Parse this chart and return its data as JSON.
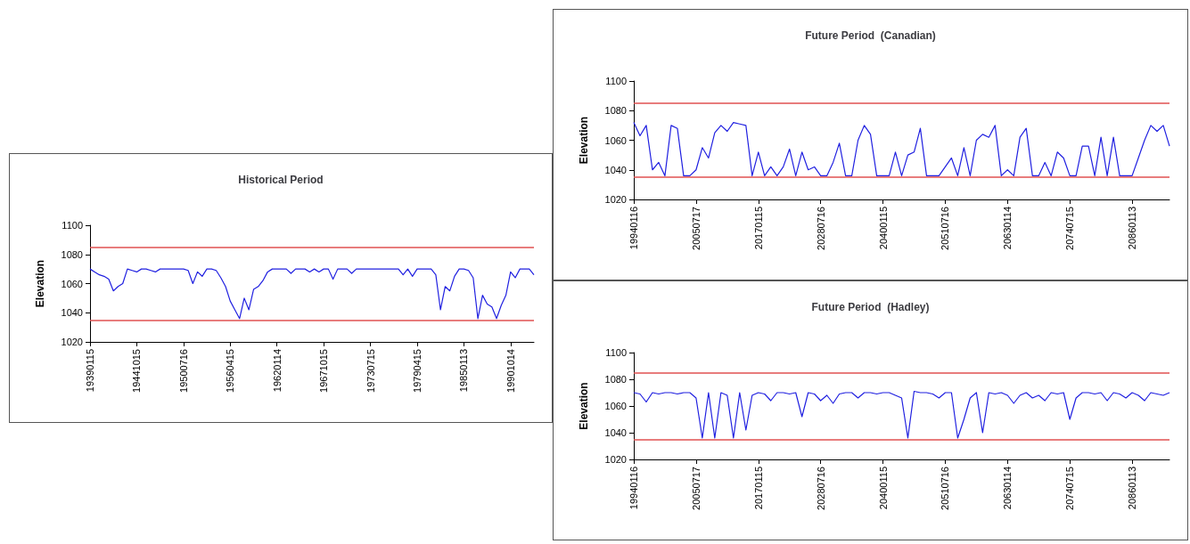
{
  "chart_data": [
    {
      "type": "line",
      "title": "Historical Period",
      "ylabel": "Elevation",
      "grid": false,
      "categories": [
        "19390115",
        null,
        null,
        null,
        null,
        null,
        null,
        null,
        null,
        null,
        "19441015",
        null,
        null,
        null,
        null,
        null,
        null,
        null,
        null,
        null,
        "19500716",
        null,
        null,
        null,
        null,
        null,
        null,
        null,
        null,
        null,
        "19560415",
        null,
        null,
        null,
        null,
        null,
        null,
        null,
        null,
        null,
        "19620114",
        null,
        null,
        null,
        null,
        null,
        null,
        null,
        null,
        null,
        "19671015",
        null,
        null,
        null,
        null,
        null,
        null,
        null,
        null,
        null,
        "19730715",
        null,
        null,
        null,
        null,
        null,
        null,
        null,
        null,
        null,
        "19790415",
        null,
        null,
        null,
        null,
        null,
        null,
        null,
        null,
        null,
        "19850113",
        null,
        null,
        null,
        null,
        null,
        null,
        null,
        null,
        null,
        "19901014",
        null,
        null,
        null,
        null,
        null
      ],
      "series": [
        {
          "color": "#2020e0",
          "values": [
            1070,
            1068,
            1066,
            1065,
            1063,
            1055,
            1058,
            1060,
            1070,
            1069,
            1068,
            1070,
            1070,
            1069,
            1068,
            1070,
            1070,
            1070,
            1070,
            1070,
            1070,
            1069,
            1060,
            1068,
            1065,
            1070,
            1070,
            1069,
            1064,
            1058,
            1048,
            1042,
            1036,
            1050,
            1042,
            1056,
            1058,
            1062,
            1068,
            1070,
            1070,
            1070,
            1070,
            1067,
            1070,
            1070,
            1070,
            1068,
            1070,
            1068,
            1070,
            1070,
            1063,
            1070,
            1070,
            1070,
            1067,
            1070,
            1070,
            1070,
            1070,
            1070,
            1070,
            1070,
            1070,
            1070,
            1070,
            1066,
            1070,
            1065,
            1070,
            1070,
            1070,
            1070,
            1066,
            1042,
            1058,
            1055,
            1065,
            1070,
            1070,
            1069,
            1064,
            1036,
            1052,
            1046,
            1044,
            1036,
            1045,
            1052,
            1068,
            1064,
            1070,
            1070,
            1070,
            1066
          ]
        }
      ],
      "ylim": [
        1020,
        1100
      ],
      "yticks": [
        1020,
        1040,
        1060,
        1080,
        1100
      ],
      "ref_lines": [
        {
          "axis": "y",
          "value": 1085,
          "color": "#e05050"
        },
        {
          "axis": "y",
          "value": 1035,
          "color": "#e05050"
        }
      ]
    },
    {
      "type": "line",
      "title": "Future Period  (Canadian)",
      "ylabel": "Elevation",
      "grid": false,
      "categories": [
        "19940116",
        null,
        null,
        null,
        null,
        null,
        null,
        null,
        null,
        null,
        "20050717",
        null,
        null,
        null,
        null,
        null,
        null,
        null,
        null,
        null,
        "20170115",
        null,
        null,
        null,
        null,
        null,
        null,
        null,
        null,
        null,
        "20280716",
        null,
        null,
        null,
        null,
        null,
        null,
        null,
        null,
        null,
        "20400115",
        null,
        null,
        null,
        null,
        null,
        null,
        null,
        null,
        null,
        "20510716",
        null,
        null,
        null,
        null,
        null,
        null,
        null,
        null,
        null,
        "20630114",
        null,
        null,
        null,
        null,
        null,
        null,
        null,
        null,
        null,
        "20740715",
        null,
        null,
        null,
        null,
        null,
        null,
        null,
        null,
        null,
        "20860113",
        null,
        null,
        null,
        null,
        null,
        null
      ],
      "series": [
        {
          "color": "#2020e0",
          "values": [
            1072,
            1063,
            1070,
            1040,
            1045,
            1036,
            1070,
            1068,
            1036,
            1036,
            1040,
            1055,
            1048,
            1065,
            1070,
            1066,
            1072,
            1071,
            1070,
            1036,
            1052,
            1036,
            1042,
            1036,
            1042,
            1054,
            1036,
            1052,
            1040,
            1042,
            1036,
            1036,
            1045,
            1058,
            1036,
            1036,
            1060,
            1070,
            1064,
            1036,
            1036,
            1036,
            1052,
            1036,
            1050,
            1052,
            1068,
            1036,
            1036,
            1036,
            1042,
            1048,
            1036,
            1055,
            1036,
            1060,
            1064,
            1062,
            1070,
            1036,
            1040,
            1036,
            1062,
            1068,
            1036,
            1036,
            1045,
            1036,
            1052,
            1048,
            1036,
            1036,
            1056,
            1056,
            1036,
            1062,
            1036,
            1062,
            1036,
            1036,
            1036,
            1048,
            1060,
            1070,
            1066,
            1070,
            1056
          ]
        }
      ],
      "ylim": [
        1020,
        1100
      ],
      "yticks": [
        1020,
        1040,
        1060,
        1080,
        1100
      ],
      "ref_lines": [
        {
          "axis": "y",
          "value": 1085,
          "color": "#e05050"
        },
        {
          "axis": "y",
          "value": 1035,
          "color": "#e05050"
        }
      ]
    },
    {
      "type": "line",
      "title": "Future Period  (Hadley)",
      "ylabel": "Elevation",
      "grid": false,
      "categories": [
        "19940116",
        null,
        null,
        null,
        null,
        null,
        null,
        null,
        null,
        null,
        "20050717",
        null,
        null,
        null,
        null,
        null,
        null,
        null,
        null,
        null,
        "20170115",
        null,
        null,
        null,
        null,
        null,
        null,
        null,
        null,
        null,
        "20280716",
        null,
        null,
        null,
        null,
        null,
        null,
        null,
        null,
        null,
        "20400115",
        null,
        null,
        null,
        null,
        null,
        null,
        null,
        null,
        null,
        "20510716",
        null,
        null,
        null,
        null,
        null,
        null,
        null,
        null,
        null,
        "20630114",
        null,
        null,
        null,
        null,
        null,
        null,
        null,
        null,
        null,
        "20740715",
        null,
        null,
        null,
        null,
        null,
        null,
        null,
        null,
        null,
        "20860113",
        null,
        null,
        null,
        null,
        null,
        null
      ],
      "series": [
        {
          "color": "#2020e0",
          "values": [
            1070,
            1069,
            1063,
            1070,
            1069,
            1070,
            1070,
            1069,
            1070,
            1070,
            1066,
            1036,
            1070,
            1036,
            1070,
            1068,
            1036,
            1070,
            1042,
            1068,
            1070,
            1069,
            1064,
            1070,
            1070,
            1069,
            1070,
            1052,
            1070,
            1069,
            1064,
            1068,
            1062,
            1069,
            1070,
            1070,
            1066,
            1070,
            1070,
            1069,
            1070,
            1070,
            1068,
            1066,
            1036,
            1071,
            1070,
            1070,
            1069,
            1066,
            1070,
            1070,
            1036,
            1050,
            1066,
            1070,
            1040,
            1070,
            1069,
            1070,
            1068,
            1062,
            1068,
            1070,
            1066,
            1068,
            1064,
            1070,
            1069,
            1070,
            1050,
            1066,
            1070,
            1070,
            1069,
            1070,
            1064,
            1070,
            1069,
            1066,
            1070,
            1068,
            1064,
            1070,
            1069,
            1068,
            1070
          ]
        }
      ],
      "ylim": [
        1020,
        1100
      ],
      "yticks": [
        1020,
        1040,
        1060,
        1080,
        1100
      ],
      "ref_lines": [
        {
          "axis": "y",
          "value": 1085,
          "color": "#e05050"
        },
        {
          "axis": "y",
          "value": 1035,
          "color": "#e05050"
        }
      ]
    }
  ]
}
